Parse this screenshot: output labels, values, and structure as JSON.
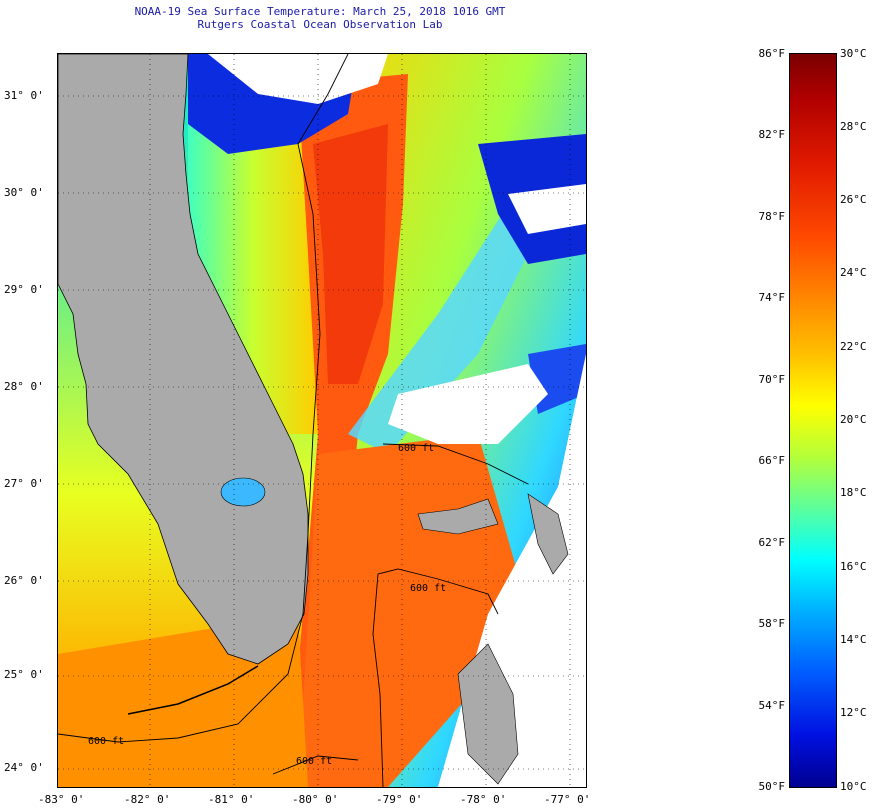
{
  "title": {
    "line1": "NOAA-19 Sea Surface Temperature:  March 25, 2018 1016 GMT",
    "line2": "Rutgers Coastal Ocean Observation Lab"
  },
  "map": {
    "lat_labels": [
      "31° 0'",
      "30° 0'",
      "29° 0'",
      "28° 0'",
      "27° 0'",
      "26° 0'",
      "25° 0'",
      "24° 0'"
    ],
    "lon_labels": [
      "-83° 0'",
      "-82° 0'",
      "-81° 0'",
      "-80° 0'",
      "-79° 0'",
      "-78° 0'",
      "-77° 0'"
    ],
    "contour_labels": [
      "600 ft",
      "600 ft",
      "600 ft",
      "600 ft"
    ]
  },
  "colorbar": {
    "fahrenheit_labels": [
      "86°F",
      "82°F",
      "78°F",
      "74°F",
      "70°F",
      "66°F",
      "62°F",
      "58°F",
      "54°F",
      "50°F"
    ],
    "celsius_labels": [
      "30°C",
      "28°C",
      "26°C",
      "24°C",
      "22°C",
      "20°C",
      "18°C",
      "16°C",
      "14°C",
      "12°C",
      "10°C"
    ]
  }
}
